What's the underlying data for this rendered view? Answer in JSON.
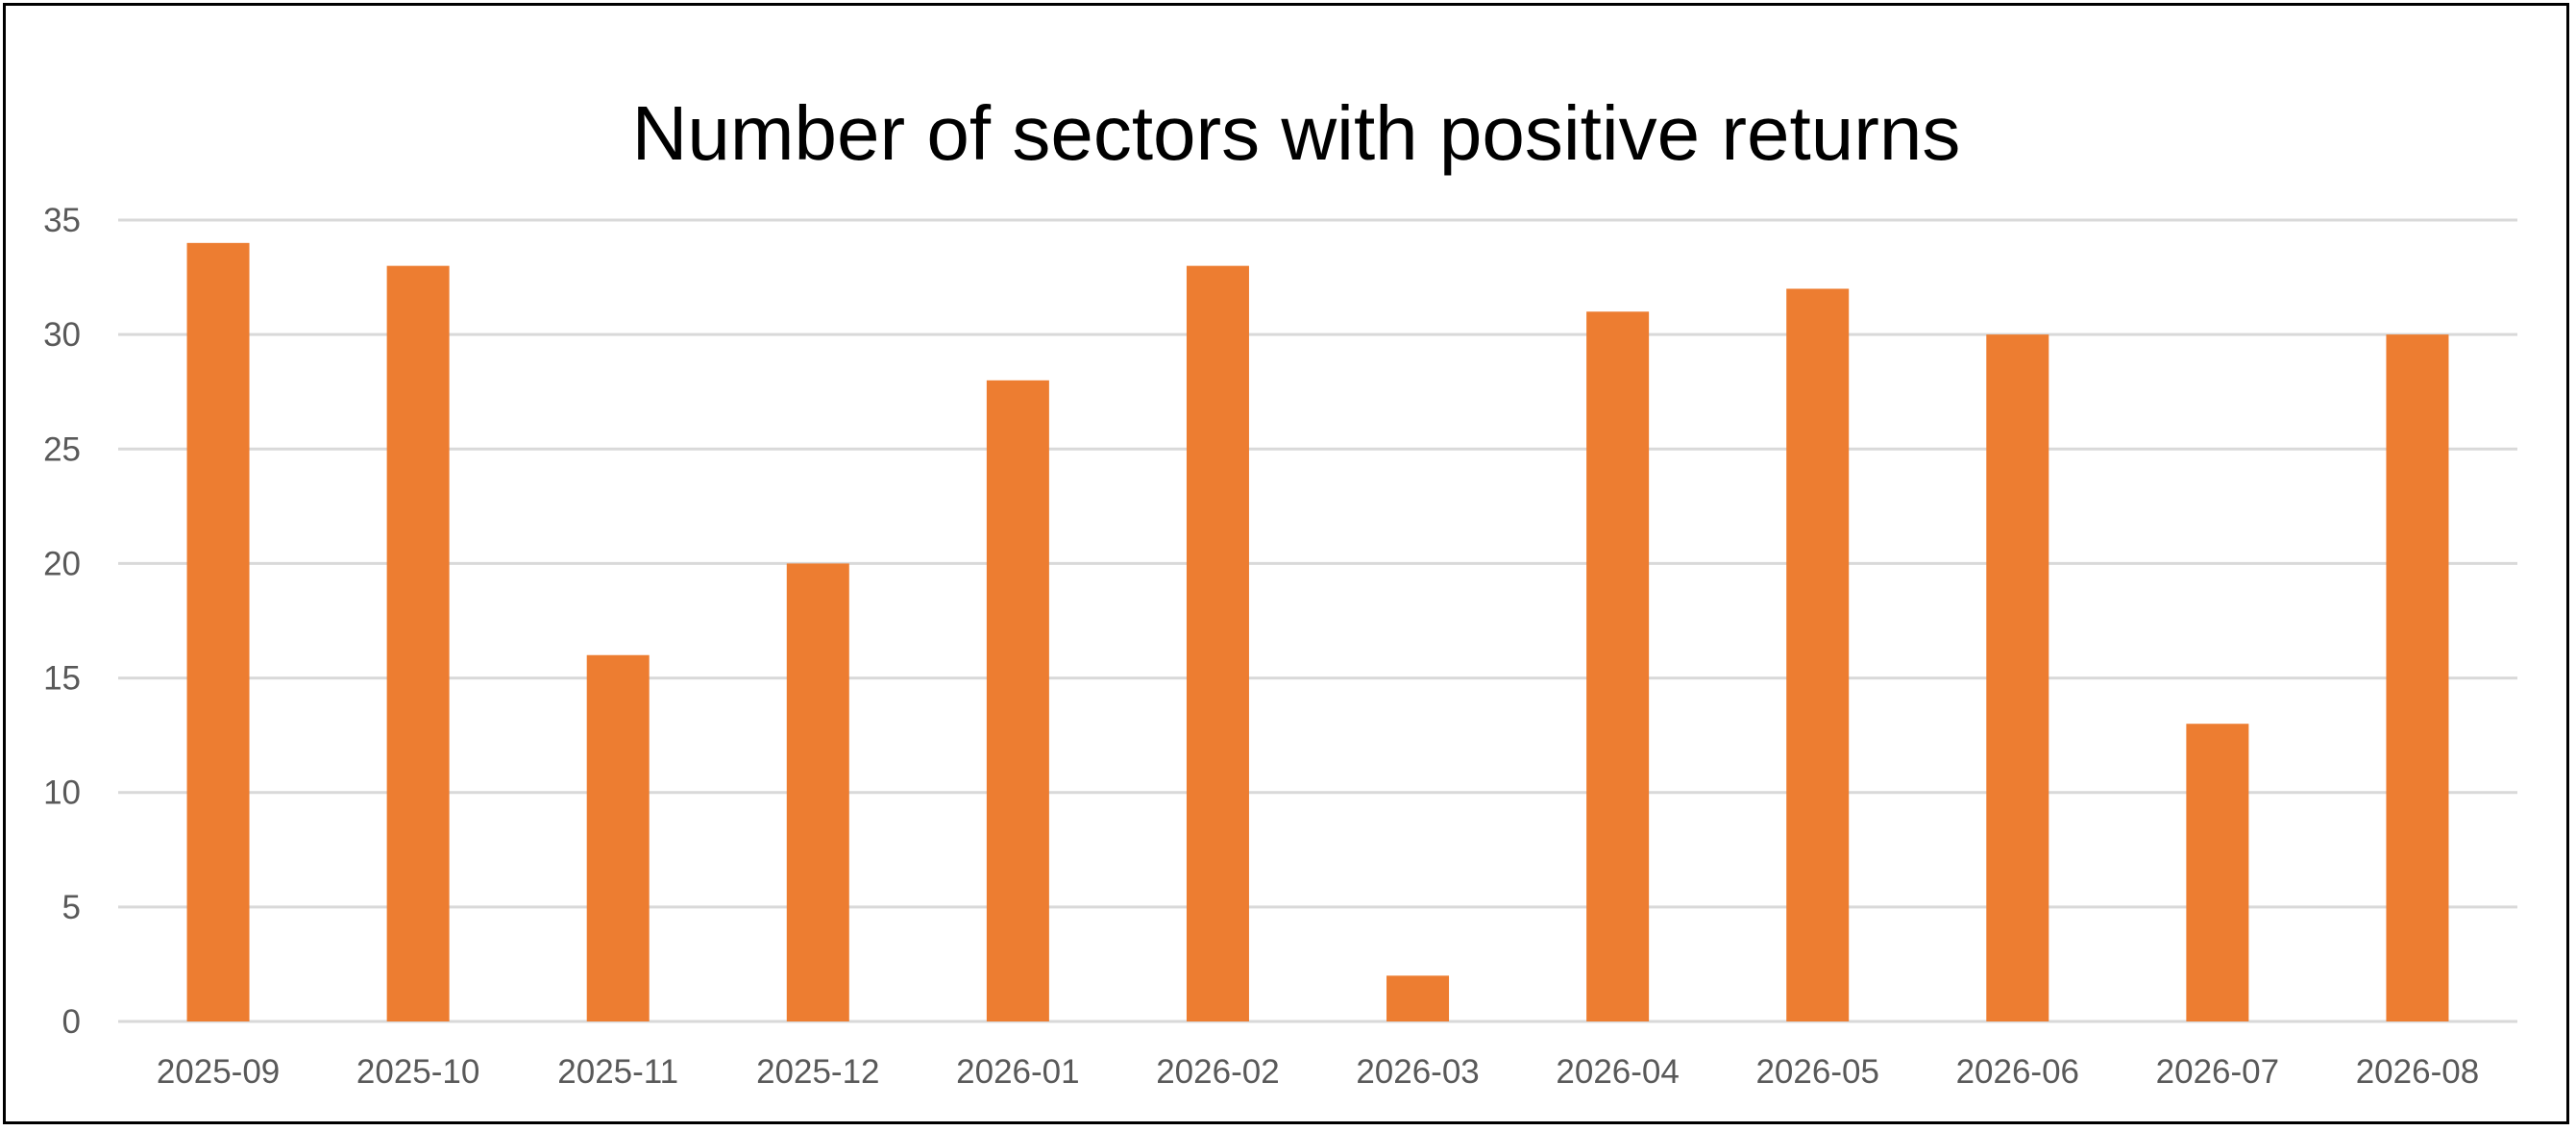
{
  "chart_data": {
    "type": "bar",
    "title": "Number of sectors with positive returns",
    "xlabel": "",
    "ylabel": "",
    "categories": [
      "2025-09",
      "2025-10",
      "2025-11",
      "2025-12",
      "2026-01",
      "2026-02",
      "2026-03",
      "2026-04",
      "2026-05",
      "2026-06",
      "2026-07",
      "2026-08"
    ],
    "values": [
      34,
      33,
      16,
      20,
      28,
      33,
      2,
      31,
      32,
      30,
      13,
      30
    ],
    "ylim": [
      0,
      35
    ],
    "yticks": [
      "0",
      "5",
      "10",
      "15",
      "20",
      "25",
      "30",
      "35"
    ],
    "grid": true,
    "legend": "none",
    "bar_color": "#ED7D31"
  }
}
